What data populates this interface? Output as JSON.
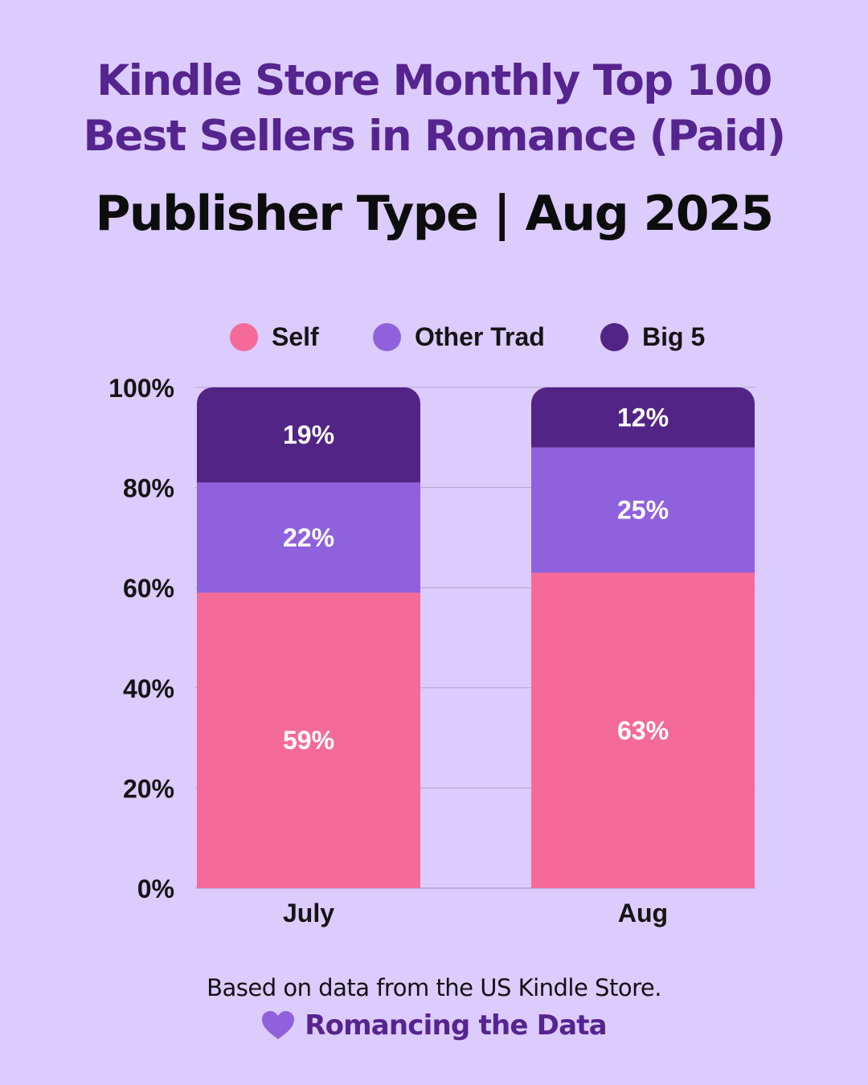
{
  "header": {
    "title_line1": "Kindle Store Monthly Top 100",
    "title_line2": "Best Sellers in Romance (Paid)",
    "subtitle": "Publisher Type | Aug 2025"
  },
  "footer": {
    "note": "Based on data from the US Kindle Store.",
    "brand": "Romancing the Data",
    "brand_icon": "heart-icon"
  },
  "colors": {
    "background": "#dccbfd",
    "self": "#f46b9a",
    "other_trad": "#9061dc",
    "big5": "#522485",
    "title": "#55248f"
  },
  "chart_data": {
    "type": "bar",
    "stacked": true,
    "categories": [
      "July",
      "Aug"
    ],
    "series": [
      {
        "name": "Self",
        "values": [
          59,
          63
        ],
        "labels": [
          "59%",
          "63%"
        ],
        "color": "#f46b9a"
      },
      {
        "name": "Other Trad",
        "values": [
          22,
          25
        ],
        "labels": [
          "22%",
          "25%"
        ],
        "color": "#9061dc"
      },
      {
        "name": "Big 5",
        "values": [
          19,
          12
        ],
        "labels": [
          "19%",
          "12%"
        ],
        "color": "#522485"
      }
    ],
    "ylim": [
      0,
      100
    ],
    "yticks": [
      0,
      20,
      40,
      60,
      80,
      100
    ],
    "ytick_labels": [
      "0%",
      "20%",
      "40%",
      "60%",
      "80%",
      "100%"
    ],
    "grid": true,
    "legend_position": "top"
  }
}
